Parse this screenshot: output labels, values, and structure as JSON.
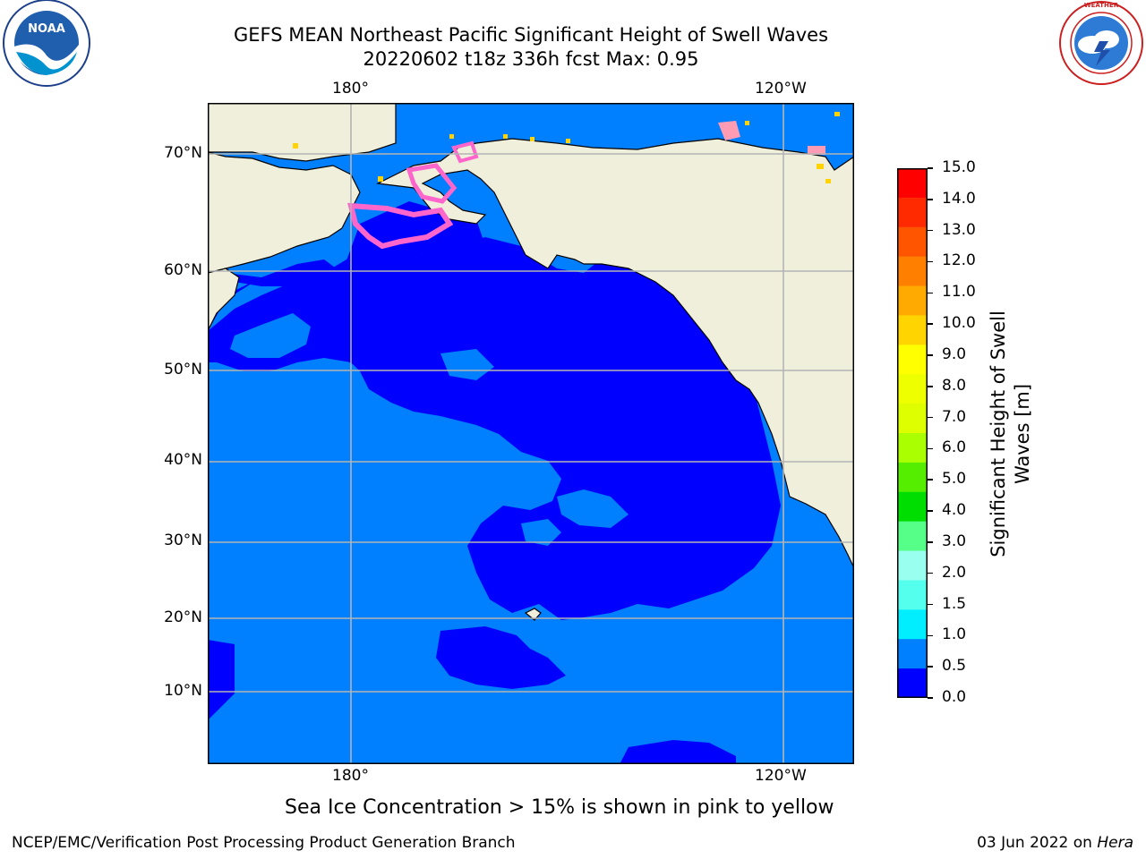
{
  "title": {
    "line1": "GEFS MEAN Northeast Pacific Significant Height of Swell Waves",
    "line2": "20220602 t18z 336h fcst   Max: 0.95"
  },
  "logos": {
    "left": {
      "icon": "noaa-logo",
      "text": "NOAA",
      "ring_text": "NATIONAL OCEANIC AND ATMOSPHERIC ADMINISTRATION · U.S. DEPARTMENT OF COMMERCE"
    },
    "right": {
      "icon": "nws-logo",
      "ring_text": "NATIONAL WEATHER SERVICE"
    }
  },
  "map": {
    "lon_ticks_top": [
      "180°",
      "120°W"
    ],
    "lon_ticks_bottom": [
      "180°",
      "120°W"
    ],
    "lat_ticks": [
      "70°N",
      "60°N",
      "50°N",
      "40°N",
      "30°N",
      "20°N",
      "10°N"
    ],
    "colors": {
      "land": "#efefdc",
      "band_0_0_5": "#0000ff",
      "band_0_5_1": "#0080ff",
      "ice_pink": "#ff66cc",
      "ice_yellow": "#ffd200",
      "grid": "#b4b4b4",
      "coast": "#000000"
    }
  },
  "colorbar": {
    "label_line1": "Significant Height of Swell",
    "label_line2": "Waves [m]",
    "ticks": [
      "15.0",
      "14.0",
      "13.0",
      "12.0",
      "11.0",
      "10.0",
      "9.0",
      "8.0",
      "7.0",
      "6.0",
      "5.0",
      "4.0",
      "3.0",
      "2.0",
      "1.5",
      "1.0",
      "0.5",
      "0.0"
    ],
    "colors_top_to_bottom": [
      "#ff0000",
      "#ff2a00",
      "#ff5500",
      "#ff8000",
      "#ffaa00",
      "#ffd400",
      "#ffff00",
      "#eeff00",
      "#ddff00",
      "#aaff00",
      "#55ee00",
      "#00dd00",
      "#55ff88",
      "#99ffee",
      "#55ffee",
      "#00eeff",
      "#0080ff",
      "#0000ff"
    ]
  },
  "notes": {
    "ice": "Sea Ice Concentration > 15% is shown in pink to yellow"
  },
  "footer": {
    "left": "NCEP/EMC/Verification Post Processing Product Generation Branch",
    "date": "03 Jun 2022 on ",
    "machine": "Hera"
  }
}
